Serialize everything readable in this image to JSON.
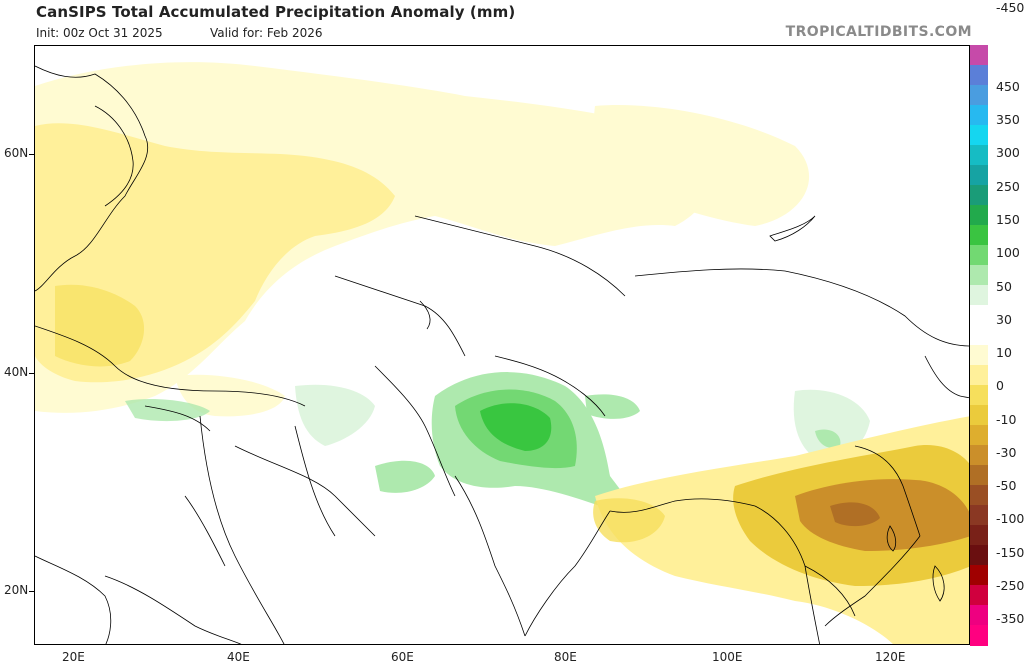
{
  "title": "CanSIPS Total Accumulated Precipitation Anomaly (mm)",
  "init": "Init: 00z Oct 31 2025",
  "valid": "Valid for: Feb 2026",
  "credit": "TROPICALTIDBITS.COM",
  "lat_labels": [
    "60N",
    "40N",
    "20N"
  ],
  "lon_labels": [
    "20E",
    "40E",
    "60E",
    "80E",
    "100E",
    "120E"
  ],
  "colorbar": {
    "labels": [
      "450",
      "350",
      "300",
      "250",
      "150",
      "100",
      "50",
      "30",
      "10",
      "0",
      "-10",
      "-30",
      "-50",
      "-100",
      "-150",
      "-250",
      "-350",
      "-450"
    ],
    "colors": [
      "#e7209c",
      "#a2026b",
      "#c8009b",
      "#b14fc1",
      "#7b8ee0",
      "#5e9fe0",
      "#2fb3f0",
      "#1bd0e8",
      "#14b7c0",
      "#1f9f9a",
      "#1b9b6d",
      "#23a84a",
      "#39c640",
      "#73d873",
      "#aee9ae",
      "#dff5df",
      "#ffffff",
      "#ffffff",
      "#fffbd2",
      "#fff09a",
      "#f6df5c",
      "#ebcb3c",
      "#deae2e",
      "#cb8f2a",
      "#b06f25",
      "#9a4f24",
      "#8a3823",
      "#792118",
      "#6a0f10",
      "#a00000",
      "#d0003e",
      "#ee0080"
    ]
  },
  "regions": [
    {
      "name": "dry-anomaly-europe-russia",
      "category": "-10 to -30"
    },
    {
      "name": "wet-anomaly-pakistan-north-india",
      "category": "30 to 50"
    },
    {
      "name": "dry-anomaly-southeast-china",
      "category": "-50 to -100"
    }
  ]
}
